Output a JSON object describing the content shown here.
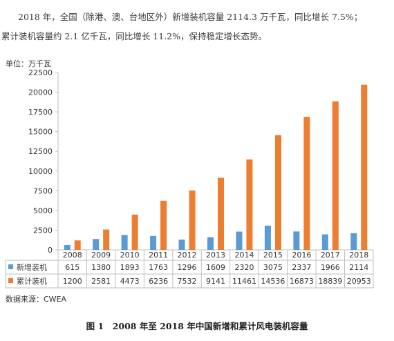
{
  "text": {
    "line1": "2018 年，全国（除港、澳、台地区外）新增装机容量 2114.3 万千瓦，同比增长 7.5%；",
    "line2": "累计装机容量约 2.1 亿千瓦，同比增长 11.2%，保持稳定增长态势。",
    "source": "数据来源：CWEA",
    "caption": "图 1　2008 年至 2018 年中国新增和累计风电装机容量"
  },
  "chart_data": {
    "type": "bar",
    "ylabel": "单位：万千瓦",
    "ylim": [
      0,
      22500
    ],
    "yticks": [
      0,
      2500,
      5000,
      7500,
      10000,
      12500,
      15000,
      17500,
      20000,
      22500
    ],
    "categories": [
      "2008",
      "2009",
      "2010",
      "2011",
      "2012",
      "2013",
      "2014",
      "2015",
      "2016",
      "2017",
      "2018"
    ],
    "series": [
      {
        "name": "新增装机",
        "color": "#5b9bd5",
        "values": [
          615,
          1380,
          1893,
          1763,
          1296,
          1609,
          2320,
          3075,
          2337,
          1966,
          2114
        ]
      },
      {
        "name": "累计装机",
        "color": "#ed7d31",
        "values": [
          1200,
          2581,
          4473,
          6236,
          7532,
          9141,
          11461,
          14536,
          16873,
          18839,
          20953
        ]
      }
    ],
    "data_table": true,
    "grid": false
  }
}
